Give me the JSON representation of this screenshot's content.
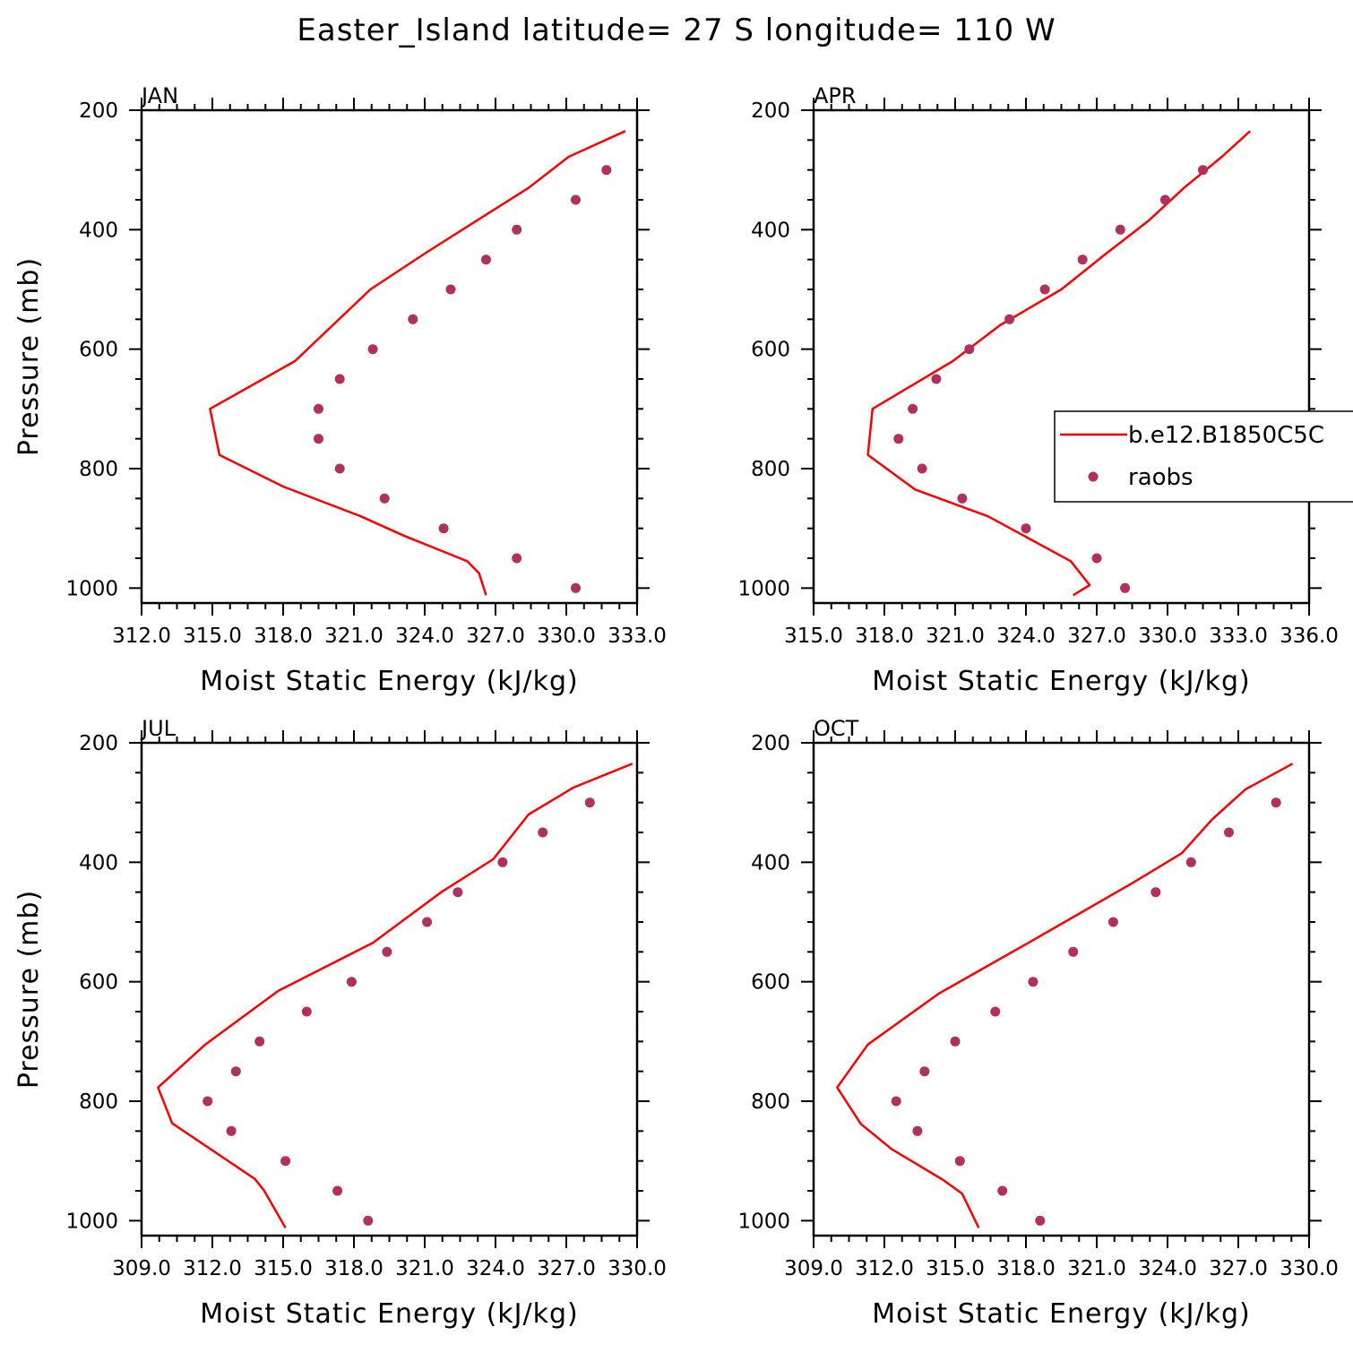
{
  "figure_title": "Easter_Island  latitude= 27 S longitude= 110 W",
  "colors": {
    "model": "#ff0000",
    "obs": "#b03060",
    "axis": "#000000"
  },
  "legend": {
    "model_label": "b.e12.B1850C5C",
    "obs_label": "raobs",
    "placement": "right of APR panel"
  },
  "chart_data": [
    {
      "type": "line",
      "panel_title": "JAN",
      "xlabel": "Moist Static Energy (kJ/kg)",
      "ylabel": "Pressure (mb)",
      "xlim": [
        312.0,
        333.0
      ],
      "ylim": [
        1000,
        200
      ],
      "y_reversed": true,
      "x_tick_labels": [
        "312.0",
        "315.0",
        "318.0",
        "321.0",
        "324.0",
        "327.0",
        "330.0",
        "333.0"
      ],
      "y_tick_labels": [
        "200",
        "400",
        "600",
        "800",
        "1000"
      ],
      "series": [
        {
          "name": "b.e12.B1850C5C",
          "style": "line",
          "x": [
            332.5,
            330.1,
            328.4,
            326.2,
            324.0,
            321.7,
            318.5,
            314.9,
            315.3,
            318.0,
            321.3,
            323.1,
            325.8,
            326.3,
            326.6
          ],
          "y": [
            235,
            278,
            330,
            385,
            440,
            500,
            620,
            700,
            777,
            830,
            880,
            912,
            955,
            975,
            1012
          ]
        },
        {
          "name": "raobs",
          "style": "points",
          "x": [
            331.7,
            330.4,
            327.9,
            326.6,
            325.1,
            323.5,
            321.8,
            320.4,
            319.5,
            319.5,
            320.4,
            322.3,
            324.8,
            327.9,
            330.4
          ],
          "y": [
            300,
            350,
            400,
            450,
            500,
            550,
            600,
            650,
            700,
            750,
            800,
            850,
            900,
            950,
            1000
          ]
        }
      ]
    },
    {
      "type": "line",
      "panel_title": "APR",
      "xlabel": "Moist Static Energy (kJ/kg)",
      "ylabel": "Pressure (mb)",
      "xlim": [
        315.0,
        336.0
      ],
      "ylim": [
        1000,
        200
      ],
      "y_reversed": true,
      "x_tick_labels": [
        "315.0",
        "318.0",
        "321.0",
        "324.0",
        "327.0",
        "330.0",
        "333.0",
        "336.0"
      ],
      "y_tick_labels": [
        "200",
        "400",
        "600",
        "800",
        "1000"
      ],
      "series": [
        {
          "name": "b.e12.B1850C5C",
          "style": "line",
          "x": [
            333.5,
            332.3,
            330.7,
            329.2,
            327.4,
            325.5,
            322.9,
            320.9,
            317.5,
            317.3,
            319.3,
            322.4,
            325.9,
            326.7,
            326.0
          ],
          "y": [
            235,
            278,
            330,
            385,
            440,
            500,
            560,
            620,
            700,
            777,
            835,
            880,
            955,
            995,
            1012
          ]
        },
        {
          "name": "raobs",
          "style": "points",
          "x": [
            331.5,
            329.9,
            328.0,
            326.4,
            324.8,
            323.3,
            321.6,
            320.2,
            319.2,
            318.6,
            319.6,
            321.3,
            324.0,
            327.0,
            328.2
          ],
          "y": [
            300,
            350,
            400,
            450,
            500,
            550,
            600,
            650,
            700,
            750,
            800,
            850,
            900,
            950,
            1000
          ]
        }
      ]
    },
    {
      "type": "line",
      "panel_title": "JUL",
      "xlabel": "Moist Static Energy (kJ/kg)",
      "ylabel": "Pressure (mb)",
      "xlim": [
        309.0,
        330.0
      ],
      "ylim": [
        1000,
        200
      ],
      "y_reversed": true,
      "x_tick_labels": [
        "309.0",
        "312.0",
        "315.0",
        "318.0",
        "321.0",
        "324.0",
        "327.0",
        "330.0"
      ],
      "y_tick_labels": [
        "200",
        "400",
        "600",
        "800",
        "1000"
      ],
      "series": [
        {
          "name": "b.e12.B1850C5C",
          "style": "line",
          "x": [
            329.8,
            327.3,
            325.4,
            323.9,
            321.7,
            318.8,
            314.8,
            311.7,
            309.7,
            310.3,
            313.8,
            314.2,
            315.1
          ],
          "y": [
            235,
            275,
            320,
            395,
            450,
            535,
            615,
            705,
            777,
            837,
            930,
            950,
            1012
          ]
        },
        {
          "name": "raobs",
          "style": "points",
          "x": [
            328.0,
            326.0,
            324.3,
            322.4,
            321.1,
            319.4,
            317.9,
            316.0,
            314.0,
            313.0,
            311.8,
            312.8,
            315.1,
            317.3,
            318.6
          ],
          "y": [
            300,
            350,
            400,
            450,
            500,
            550,
            600,
            650,
            700,
            750,
            800,
            850,
            900,
            950,
            1000
          ]
        }
      ]
    },
    {
      "type": "line",
      "panel_title": "OCT",
      "xlabel": "Moist Static Energy (kJ/kg)",
      "ylabel": "Pressure (mb)",
      "xlim": [
        309.0,
        330.0
      ],
      "ylim": [
        1000,
        200
      ],
      "y_reversed": true,
      "x_tick_labels": [
        "309.0",
        "312.0",
        "315.0",
        "318.0",
        "321.0",
        "324.0",
        "327.0",
        "330.0"
      ],
      "y_tick_labels": [
        "200",
        "400",
        "600",
        "800",
        "1000"
      ],
      "series": [
        {
          "name": "b.e12.B1850C5C",
          "style": "line",
          "x": [
            329.3,
            327.3,
            325.9,
            324.6,
            322.5,
            320.3,
            318.1,
            314.3,
            311.3,
            310.0,
            311.0,
            312.3,
            314.5,
            315.3,
            316.0
          ],
          "y": [
            235,
            278,
            328,
            385,
            435,
            485,
            535,
            620,
            705,
            777,
            838,
            880,
            932,
            955,
            1012
          ]
        },
        {
          "name": "raobs",
          "style": "points",
          "x": [
            328.6,
            326.6,
            325.0,
            323.5,
            321.7,
            320.0,
            318.3,
            316.7,
            315.0,
            313.7,
            312.5,
            313.4,
            315.2,
            317.0,
            318.6
          ],
          "y": [
            300,
            350,
            400,
            450,
            500,
            550,
            600,
            650,
            700,
            750,
            800,
            850,
            900,
            950,
            1000
          ]
        }
      ]
    }
  ]
}
